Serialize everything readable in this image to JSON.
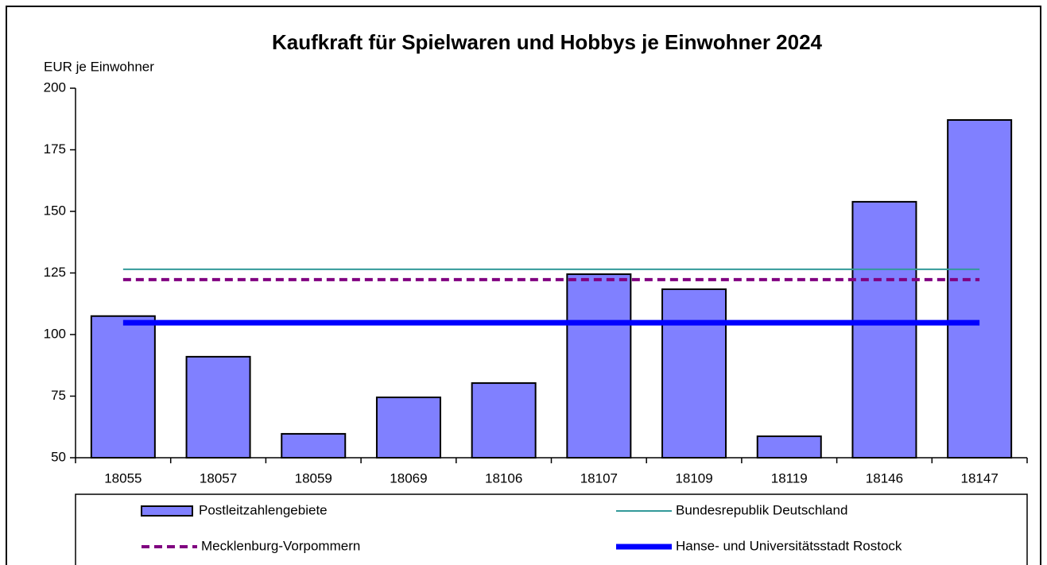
{
  "chart_data": {
    "type": "bar",
    "title": "Kaufkraft für Spielwaren und Hobbys je Einwohner 2024",
    "y_label": "EUR je Einwohner",
    "categories": [
      "18055",
      "18057",
      "18059",
      "18069",
      "18106",
      "18107",
      "18109",
      "18119",
      "18146",
      "18147"
    ],
    "series": [
      {
        "name": "Postleitzahlengebiete",
        "color": "#8080ff",
        "values": [
          107.5,
          91,
          59.7,
          74.5,
          80.3,
          124.5,
          118.4,
          58.7,
          153.9,
          187.1
        ]
      }
    ],
    "reference_lines": [
      {
        "name": "Bundesrepublik Deutschland",
        "color": "#339999",
        "value": 126.5,
        "style": "solid",
        "width": 2
      },
      {
        "name": "Mecklenburg-Vorpommern",
        "color": "#800080",
        "value": 122.3,
        "style": "dashed",
        "width": 4
      },
      {
        "name": "Hanse- und Universitätsstadt Rostock",
        "color": "#0000ff",
        "value": 104.8,
        "style": "solid",
        "width": 7
      }
    ],
    "ylim": [
      50,
      200
    ],
    "yticks": [
      50,
      75,
      100,
      125,
      150,
      175,
      200
    ],
    "grid": false
  }
}
